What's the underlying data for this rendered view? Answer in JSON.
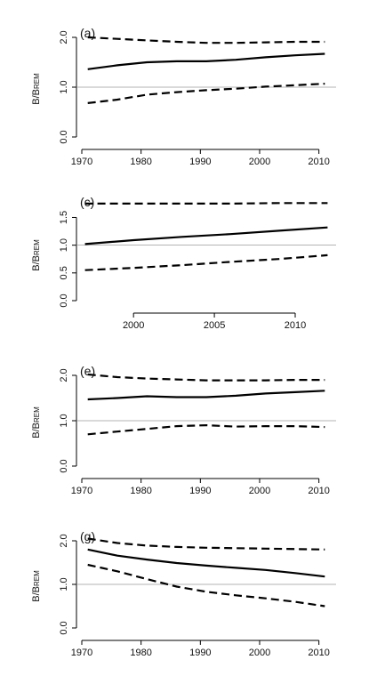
{
  "chart_data": [
    {
      "type": "line",
      "panel_label": "(a)",
      "ylabel": "B/BREM",
      "ylabel_main": "B/B",
      "ylabel_sub": "REM",
      "xlim": [
        1970,
        2012
      ],
      "ylim": [
        0,
        2
      ],
      "x_ticks": [
        1970,
        1980,
        1990,
        2000,
        2010
      ],
      "x_tick_labels": [
        "1970",
        "1980",
        "1990",
        "2000",
        "2010"
      ],
      "y_ticks": [
        0,
        1,
        2
      ],
      "y_tick_labels": [
        "0.0",
        "1.0",
        "2.0"
      ],
      "reference_line": 1.0,
      "grid": false,
      "series": [
        {
          "role": "upper",
          "line_style": "dashed",
          "x": [
            1971,
            1976,
            1981,
            1986,
            1991,
            1996,
            2001,
            2006,
            2011
          ],
          "y": [
            2.0,
            1.97,
            1.94,
            1.91,
            1.89,
            1.89,
            1.9,
            1.91,
            1.91
          ]
        },
        {
          "role": "median",
          "line_style": "solid",
          "x": [
            1971,
            1976,
            1981,
            1986,
            1991,
            1996,
            2001,
            2006,
            2011
          ],
          "y": [
            1.36,
            1.44,
            1.5,
            1.52,
            1.52,
            1.55,
            1.6,
            1.64,
            1.67
          ]
        },
        {
          "role": "lower",
          "line_style": "dashed",
          "x": [
            1971,
            1976,
            1981,
            1986,
            1991,
            1996,
            2001,
            2006,
            2011
          ],
          "y": [
            0.68,
            0.75,
            0.85,
            0.9,
            0.94,
            0.97,
            1.01,
            1.04,
            1.07
          ]
        }
      ]
    },
    {
      "type": "line",
      "panel_label": "(c)",
      "ylabel": "B/BREM",
      "ylabel_main": "B/B",
      "ylabel_sub": "REM",
      "xlim": [
        1996.8,
        2012.2
      ],
      "ylim": [
        0,
        1.7
      ],
      "x_ticks": [
        2000,
        2005,
        2010
      ],
      "x_tick_labels": [
        "2000",
        "2005",
        "2010"
      ],
      "y_ticks": [
        0,
        0.5,
        1,
        1.5
      ],
      "y_tick_labels": [
        "0.0",
        "0.5",
        "1.0",
        "1.5"
      ],
      "reference_line": 1.0,
      "grid": false,
      "series": [
        {
          "role": "upper",
          "line_style": "dashed",
          "x": [
            1997,
            2000,
            2003,
            2006,
            2009,
            2012
          ],
          "y": [
            1.75,
            1.75,
            1.75,
            1.75,
            1.76,
            1.76
          ]
        },
        {
          "role": "median",
          "line_style": "solid",
          "x": [
            1997,
            2000,
            2003,
            2006,
            2009,
            2012
          ],
          "y": [
            1.02,
            1.09,
            1.15,
            1.2,
            1.26,
            1.32
          ]
        },
        {
          "role": "lower",
          "line_style": "dashed",
          "x": [
            1997,
            2000,
            2003,
            2006,
            2009,
            2012
          ],
          "y": [
            0.55,
            0.59,
            0.64,
            0.7,
            0.75,
            0.82
          ]
        }
      ]
    },
    {
      "type": "line",
      "panel_label": "(e)",
      "ylabel": "B/BREM",
      "ylabel_main": "B/B",
      "ylabel_sub": "REM",
      "xlim": [
        1970,
        2012
      ],
      "ylim": [
        0,
        2
      ],
      "x_ticks": [
        1970,
        1980,
        1990,
        2000,
        2010
      ],
      "x_tick_labels": [
        "1970",
        "1980",
        "1990",
        "2000",
        "2010"
      ],
      "y_ticks": [
        0,
        1,
        2
      ],
      "y_tick_labels": [
        "0.0",
        "1.0",
        "2.0"
      ],
      "reference_line": 1.0,
      "grid": false,
      "series": [
        {
          "role": "upper",
          "line_style": "dashed",
          "x": [
            1971,
            1976,
            1981,
            1986,
            1991,
            1996,
            2001,
            2006,
            2011
          ],
          "y": [
            2.02,
            1.96,
            1.93,
            1.91,
            1.89,
            1.89,
            1.89,
            1.9,
            1.9
          ]
        },
        {
          "role": "median",
          "line_style": "solid",
          "x": [
            1971,
            1976,
            1981,
            1986,
            1991,
            1996,
            2001,
            2006,
            2011
          ],
          "y": [
            1.47,
            1.5,
            1.54,
            1.52,
            1.52,
            1.55,
            1.6,
            1.63,
            1.66
          ]
        },
        {
          "role": "lower",
          "line_style": "dashed",
          "x": [
            1971,
            1976,
            1981,
            1986,
            1991,
            1996,
            2001,
            2006,
            2011
          ],
          "y": [
            0.7,
            0.76,
            0.82,
            0.88,
            0.9,
            0.87,
            0.88,
            0.88,
            0.86
          ]
        }
      ]
    },
    {
      "type": "line",
      "panel_label": "(g)",
      "ylabel": "B/BREM",
      "ylabel_main": "B/B",
      "ylabel_sub": "REM",
      "xlim": [
        1970,
        2012
      ],
      "ylim": [
        0,
        2
      ],
      "x_ticks": [
        1970,
        1980,
        1990,
        2000,
        2010
      ],
      "x_tick_labels": [
        "1970",
        "1980",
        "1990",
        "2000",
        "2010"
      ],
      "y_ticks": [
        0,
        1,
        2
      ],
      "y_tick_labels": [
        "0.0",
        "1.0",
        "2.0"
      ],
      "reference_line": 1.0,
      "grid": false,
      "series": [
        {
          "role": "upper",
          "line_style": "dashed",
          "x": [
            1971,
            1976,
            1981,
            1986,
            1991,
            1996,
            2001,
            2006,
            2011
          ],
          "y": [
            2.05,
            1.95,
            1.89,
            1.86,
            1.84,
            1.83,
            1.82,
            1.81,
            1.8
          ]
        },
        {
          "role": "median",
          "line_style": "solid",
          "x": [
            1971,
            1976,
            1981,
            1986,
            1991,
            1996,
            2001,
            2006,
            2011
          ],
          "y": [
            1.8,
            1.66,
            1.57,
            1.49,
            1.43,
            1.38,
            1.33,
            1.26,
            1.18
          ]
        },
        {
          "role": "lower",
          "line_style": "dashed",
          "x": [
            1971,
            1976,
            1981,
            1986,
            1991,
            1996,
            2001,
            2006,
            2011
          ],
          "y": [
            1.45,
            1.3,
            1.12,
            0.95,
            0.83,
            0.75,
            0.68,
            0.6,
            0.5
          ]
        }
      ]
    }
  ]
}
